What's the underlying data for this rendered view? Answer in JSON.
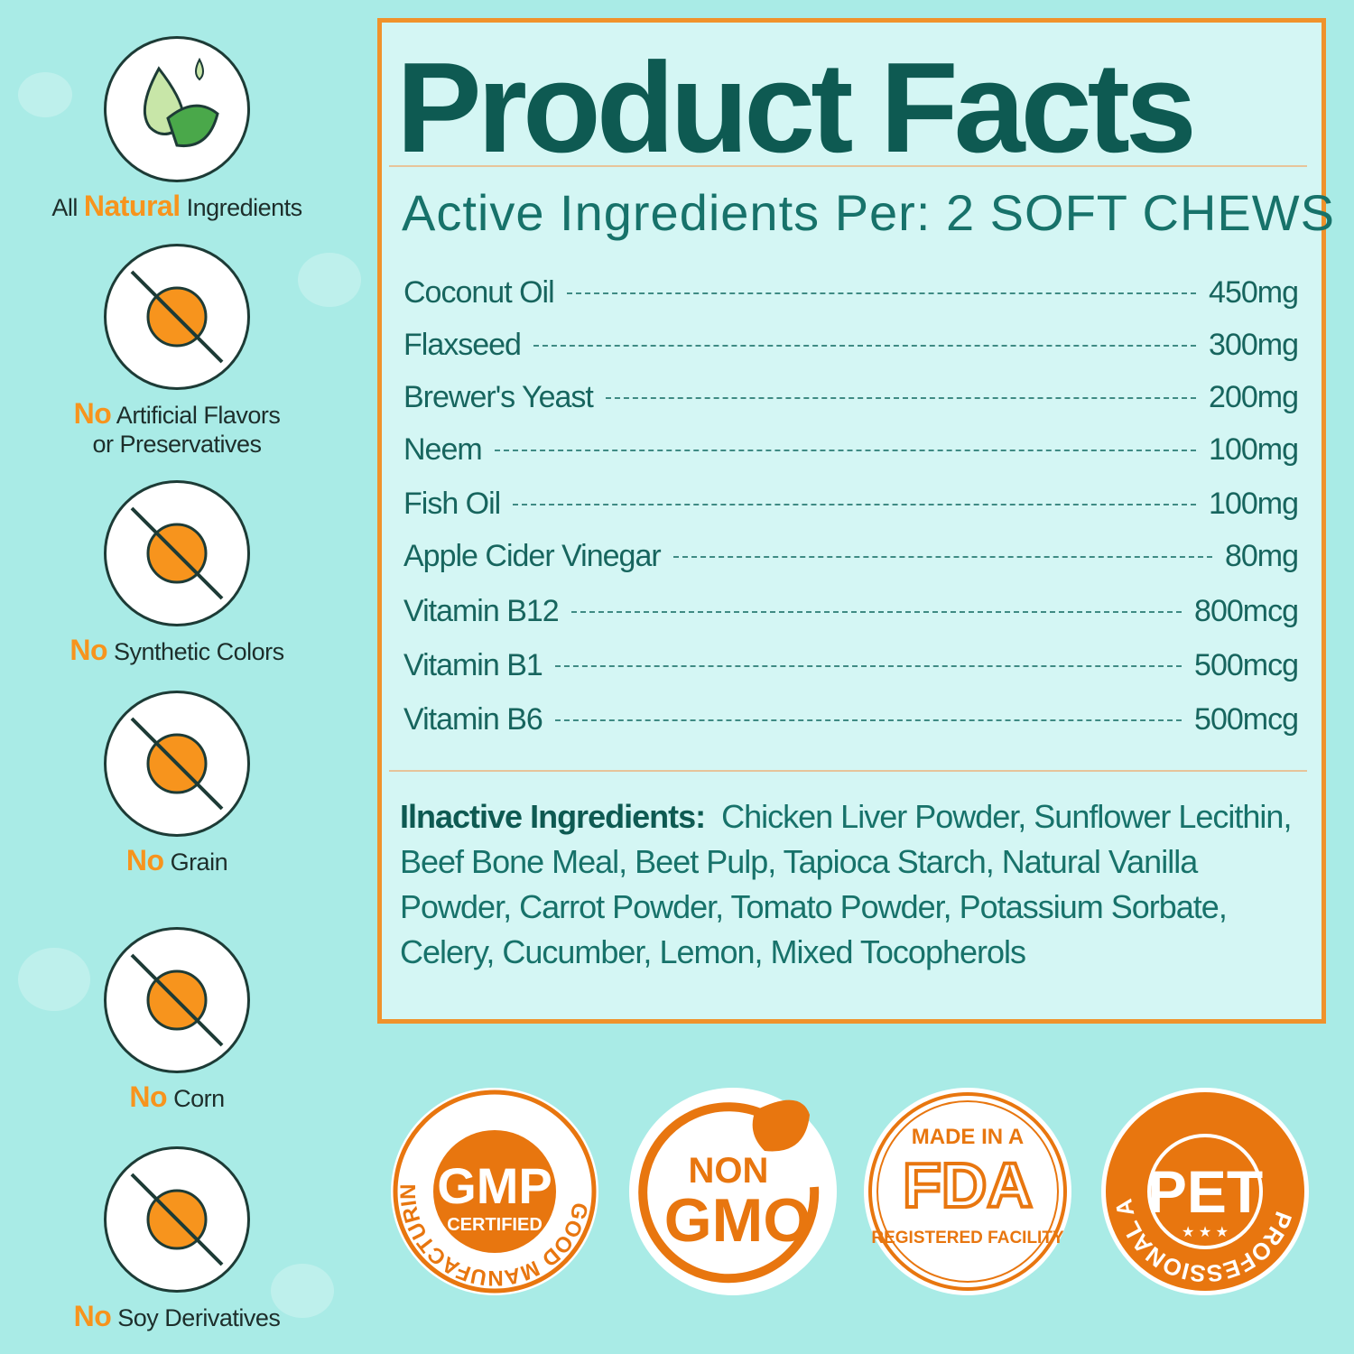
{
  "colors": {
    "accent": "#f7941d",
    "title": "#0e5a52",
    "text": "#17726a",
    "border": "#f0922b",
    "background": "#a9ebe6"
  },
  "features": [
    {
      "icon": "oil-drop-leaf-icon",
      "pre": "All ",
      "hl": "Natural",
      "post": " Ingredients",
      "line2": ""
    },
    {
      "icon": "no-chemical-flask-icon",
      "pre": "",
      "hl": "No",
      "post": " Artificial Flavors",
      "line2": "or Preservatives"
    },
    {
      "icon": "no-synthetic-color-icon",
      "pre": "",
      "hl": "No",
      "post": " Synthetic Colors",
      "line2": ""
    },
    {
      "icon": "no-grain-icon",
      "pre": "",
      "hl": "No",
      "post": " Grain",
      "line2": ""
    },
    {
      "icon": "no-corn-icon",
      "pre": "",
      "hl": "No",
      "post": " Corn",
      "line2": ""
    },
    {
      "icon": "no-soy-icon",
      "pre": "",
      "hl": "No",
      "post": " Soy Derivatives",
      "line2": ""
    }
  ],
  "panel": {
    "title": "Product Facts",
    "subtitle": "Active Ingredients Per: 2 SOFT CHEWS",
    "active": [
      {
        "name": "Coconut Oil",
        "amount": "450mg"
      },
      {
        "name": "Flaxseed",
        "amount": "300mg"
      },
      {
        "name": "Brewer's Yeast",
        "amount": "200mg"
      },
      {
        "name": "Neem",
        "amount": "100mg"
      },
      {
        "name": "Fish Oil",
        "amount": "100mg"
      },
      {
        "name": "Apple Cider Vinegar",
        "amount": "80mg"
      },
      {
        "name": "Vitamin B12",
        "amount": "800mcg"
      },
      {
        "name": "Vitamin B1",
        "amount": "500mcg"
      },
      {
        "name": "Vitamin B6",
        "amount": "500mcg"
      }
    ],
    "inactive_label": "Ilnactive Ingredients:",
    "inactive_text": "Chicken Liver Powder, Sunflower Lecithin, Beef Bone Meal, Beet Pulp, Tapioca Starch, Natural Vanilla Powder, Carrot Powder, Tomato Powder, Potassium Sorbate, Celery, Cucumber, Lemon, Mixed Tocopherols"
  },
  "badges": [
    {
      "name": "gmp-badge",
      "ring": "GOOD MANUFACTURING PRACTICE",
      "main": "GMP",
      "sub": "CERTIFIED"
    },
    {
      "name": "non-gmo-badge",
      "top": "NON",
      "main": "GMO"
    },
    {
      "name": "fda-badge",
      "top": "MADE IN A",
      "main": "FDA",
      "sub": "REGISTERED FACILITY"
    },
    {
      "name": "pet-approved-badge",
      "ring": "PROFESSIONAL APPROVED",
      "main": "PET",
      "stars": "★ ★ ★"
    }
  ]
}
